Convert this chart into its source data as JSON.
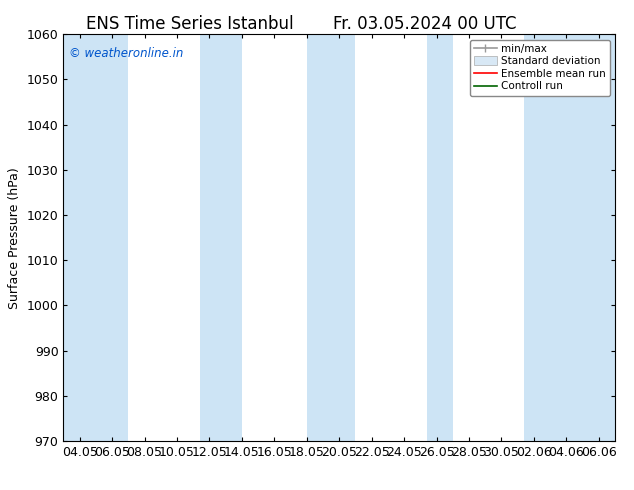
{
  "title_left": "ENS Time Series Istanbul",
  "title_right": "Fr. 03.05.2024 00 UTC",
  "ylabel": "Surface Pressure (hPa)",
  "ylim": [
    970,
    1060
  ],
  "yticks": [
    970,
    980,
    990,
    1000,
    1010,
    1020,
    1030,
    1040,
    1050,
    1060
  ],
  "xtick_labels": [
    "04.05",
    "06.05",
    "08.05",
    "10.05",
    "12.05",
    "14.05",
    "16.05",
    "18.05",
    "20.05",
    "22.05",
    "24.05",
    "26.05",
    "28.05",
    "30.05",
    "02.06",
    "04.06",
    "06.06"
  ],
  "watermark": "© weatheronline.in",
  "watermark_color": "#0055cc",
  "bg_color": "#ffffff",
  "plot_bg_color": "#ffffff",
  "stripe_color": "#cde4f5",
  "stripe_indices": [
    0,
    1,
    4,
    5,
    7,
    8,
    11,
    14,
    16
  ],
  "stripe_widths": [
    0.55,
    0.55,
    0.55,
    0.55,
    0.55,
    0.55,
    0.55,
    0.55,
    0.55
  ],
  "legend_labels": [
    "min/max",
    "Standard deviation",
    "Ensemble mean run",
    "Controll run"
  ],
  "title_fontsize": 12,
  "axis_fontsize": 9,
  "tick_fontsize": 9
}
